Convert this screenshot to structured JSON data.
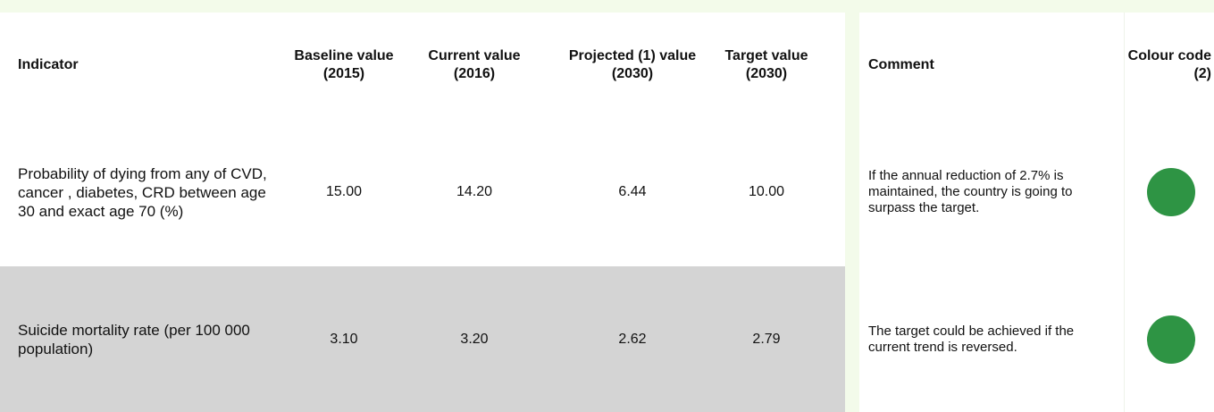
{
  "table": {
    "headers": [
      "Indicator",
      "Baseline value (2015)",
      "Current value (2016)",
      "Projected (1) value (2030)",
      "Target value (2030)",
      "Comment",
      "Colour code (2)"
    ],
    "rows": [
      [
        "Probability of dying from any of CVD, cancer , diabetes, CRD between age 30 and exact age 70 (%)",
        "15.00",
        "14.20",
        "6.44",
        "10.00",
        "If the annual reduction of 2.7% is maintained, the country is going to surpass the target.",
        "#2e9444"
      ],
      [
        "Suicide mortality rate (per 100 000 population)",
        "3.10",
        "3.20",
        "2.62",
        "2.79",
        "The target could be achieved if the current trend is reversed.",
        "#2e9444"
      ]
    ]
  }
}
